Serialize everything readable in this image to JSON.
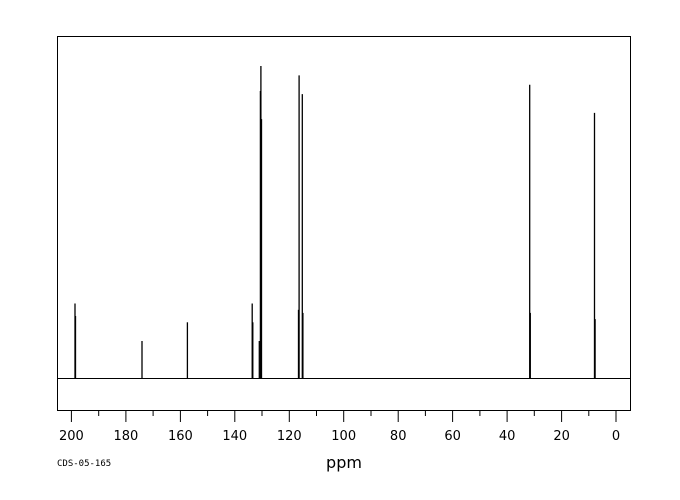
{
  "chart_data": {
    "type": "line",
    "subtype": "nmr-stick-spectrum",
    "xlabel": "ppm",
    "x_reversed": true,
    "xlim": [
      205.3,
      -5.5
    ],
    "ylim": [
      0,
      1
    ],
    "grid": false,
    "x_ticks": [
      200,
      180,
      160,
      140,
      120,
      100,
      80,
      60,
      40,
      20,
      0
    ],
    "x_tick_labels": [
      "200",
      "180",
      "160",
      "140",
      "120",
      "100",
      "80",
      "60",
      "40",
      "20",
      "0"
    ],
    "series": [
      {
        "peaks": [
          {
            "ppm": 198.7,
            "intensity": 0.24
          },
          {
            "ppm": 198.5,
            "intensity": 0.2
          },
          {
            "ppm": 174.1,
            "intensity": 0.12
          },
          {
            "ppm": 157.4,
            "intensity": 0.18
          },
          {
            "ppm": 133.6,
            "intensity": 0.24
          },
          {
            "ppm": 133.4,
            "intensity": 0.18
          },
          {
            "ppm": 131.0,
            "intensity": 0.12
          },
          {
            "ppm": 130.6,
            "intensity": 0.92
          },
          {
            "ppm": 130.4,
            "intensity": 1.0
          },
          {
            "ppm": 130.2,
            "intensity": 0.83
          },
          {
            "ppm": 116.6,
            "intensity": 0.22
          },
          {
            "ppm": 116.4,
            "intensity": 0.97
          },
          {
            "ppm": 115.2,
            "intensity": 0.91
          },
          {
            "ppm": 115.0,
            "intensity": 0.21
          },
          {
            "ppm": 31.7,
            "intensity": 0.94
          },
          {
            "ppm": 31.5,
            "intensity": 0.21
          },
          {
            "ppm": 7.9,
            "intensity": 0.85
          },
          {
            "ppm": 7.7,
            "intensity": 0.19
          }
        ]
      }
    ]
  },
  "footer": {
    "code": "CDS-05-165"
  }
}
